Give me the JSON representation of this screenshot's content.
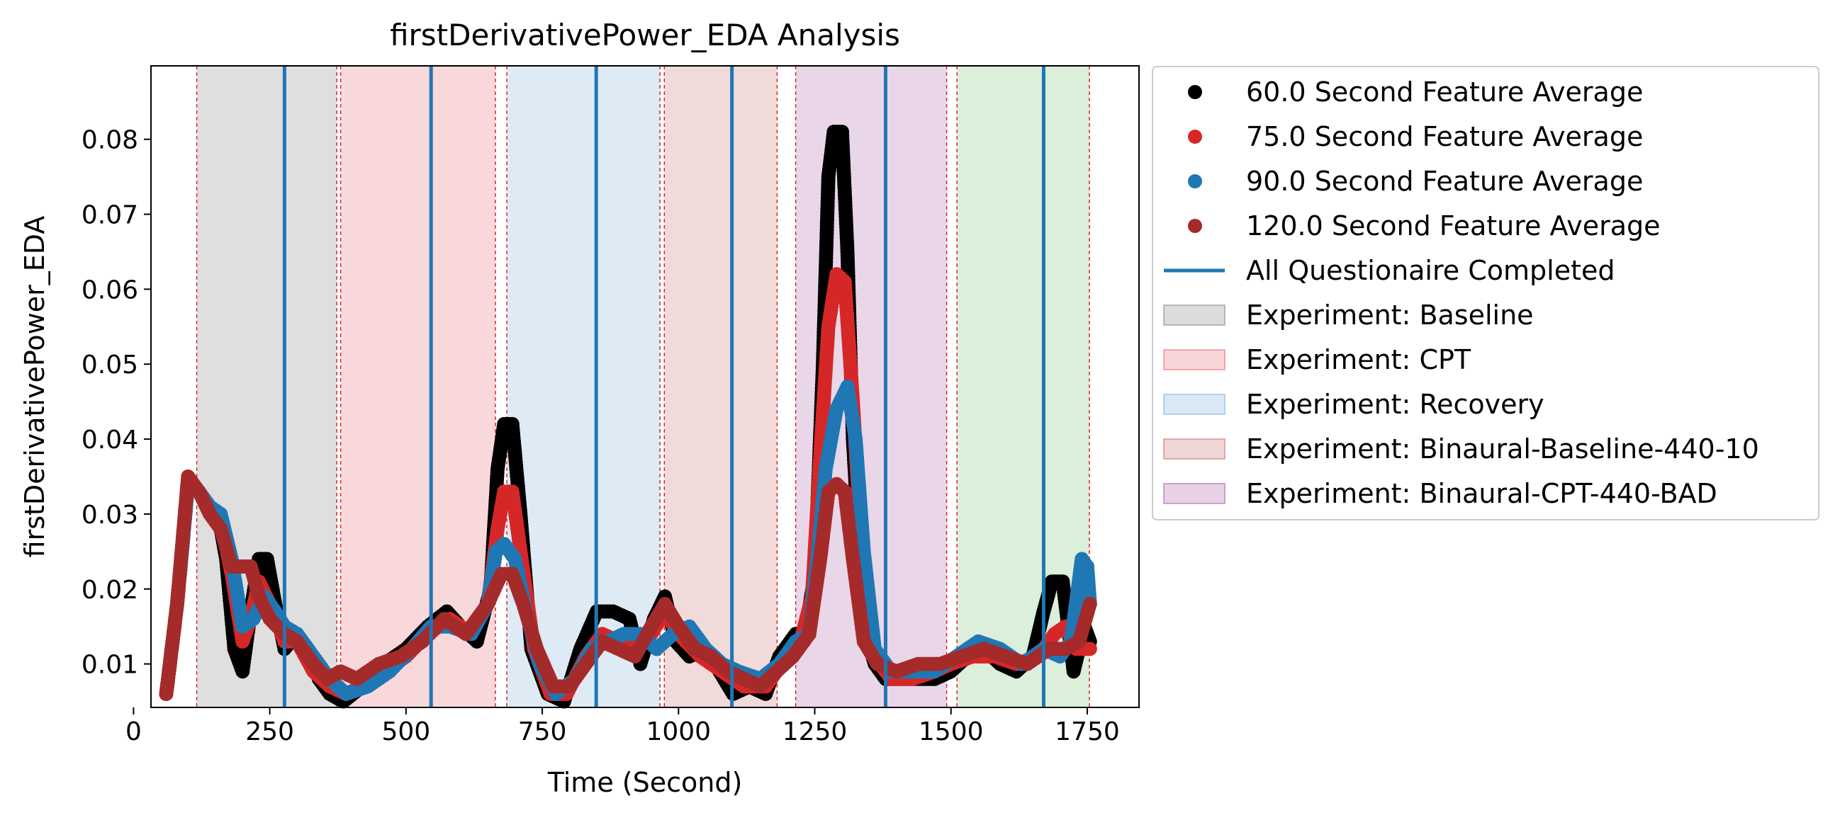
{
  "chart_data": {
    "type": "scatter",
    "title": "firstDerivativePower_EDA Analysis",
    "xlabel": "Time (Second)",
    "ylabel": "firstDerivativePower_EDA",
    "xlim": [
      32,
      1845
    ],
    "ylim": [
      0.0042,
      0.0898
    ],
    "xticks": [
      0,
      250,
      500,
      750,
      1000,
      1250,
      1500,
      1750
    ],
    "yticks": [
      0.01,
      0.02,
      0.03,
      0.04,
      0.05,
      0.06,
      0.07,
      0.08
    ],
    "xtick_labels": [
      "0",
      "250",
      "500",
      "750",
      "1000",
      "1250",
      "1500",
      "1750"
    ],
    "ytick_labels": [
      "0.01",
      "0.02",
      "0.03",
      "0.04",
      "0.05",
      "0.06",
      "0.07",
      "0.08"
    ],
    "grid": false,
    "legend_position": "outside right, top",
    "regions": [
      {
        "label": "Experiment: Baseline",
        "start": 116,
        "end": 373,
        "color": "#808080"
      },
      {
        "label": "Experiment: CPT",
        "start": 380,
        "end": 664,
        "color": "#e8636e"
      },
      {
        "label": "Experiment: Recovery",
        "start": 685,
        "end": 966,
        "color": "#7aaed6"
      },
      {
        "label": "Experiment: Binaural-Baseline-440-10",
        "start": 974,
        "end": 1181,
        "color": "#c56a6a"
      },
      {
        "label": "Experiment: Binaural-CPT-440-BAD",
        "start": 1215,
        "end": 1492,
        "color": "#a65aa8"
      },
      {
        "label": "",
        "start": 1511,
        "end": 1754,
        "color": "#6fbf6f"
      }
    ],
    "dashed_markers": [
      116,
      373,
      380,
      664,
      685,
      966,
      974,
      1181,
      1215,
      1492,
      1511,
      1754
    ],
    "questionnaire_label": "All Questionaire Completed",
    "questionnaire_times": [
      277,
      546,
      849,
      1098,
      1380,
      1670
    ],
    "series": [
      {
        "name": "60.0 Second Feature Average",
        "color": "#000000",
        "points": [
          [
            60,
            0.006
          ],
          [
            80,
            0.018
          ],
          [
            100,
            0.034
          ],
          [
            120,
            0.033
          ],
          [
            140,
            0.031
          ],
          [
            155,
            0.03
          ],
          [
            170,
            0.024
          ],
          [
            185,
            0.012
          ],
          [
            200,
            0.009
          ],
          [
            215,
            0.017
          ],
          [
            230,
            0.024
          ],
          [
            245,
            0.024
          ],
          [
            260,
            0.018
          ],
          [
            277,
            0.012
          ],
          [
            300,
            0.014
          ],
          [
            320,
            0.012
          ],
          [
            340,
            0.008
          ],
          [
            360,
            0.006
          ],
          [
            385,
            0.005
          ],
          [
            420,
            0.007
          ],
          [
            460,
            0.01
          ],
          [
            500,
            0.012
          ],
          [
            540,
            0.015
          ],
          [
            575,
            0.017
          ],
          [
            600,
            0.015
          ],
          [
            630,
            0.013
          ],
          [
            655,
            0.02
          ],
          [
            668,
            0.036
          ],
          [
            680,
            0.042
          ],
          [
            695,
            0.042
          ],
          [
            710,
            0.03
          ],
          [
            730,
            0.012
          ],
          [
            760,
            0.006
          ],
          [
            790,
            0.005
          ],
          [
            820,
            0.012
          ],
          [
            850,
            0.017
          ],
          [
            880,
            0.017
          ],
          [
            910,
            0.016
          ],
          [
            930,
            0.01
          ],
          [
            955,
            0.016
          ],
          [
            975,
            0.019
          ],
          [
            995,
            0.013
          ],
          [
            1020,
            0.011
          ],
          [
            1050,
            0.012
          ],
          [
            1075,
            0.009
          ],
          [
            1100,
            0.006
          ],
          [
            1130,
            0.007
          ],
          [
            1160,
            0.006
          ],
          [
            1185,
            0.011
          ],
          [
            1215,
            0.014
          ],
          [
            1230,
            0.013
          ],
          [
            1250,
            0.022
          ],
          [
            1265,
            0.05
          ],
          [
            1275,
            0.075
          ],
          [
            1285,
            0.081
          ],
          [
            1300,
            0.081
          ],
          [
            1310,
            0.065
          ],
          [
            1320,
            0.04
          ],
          [
            1340,
            0.015
          ],
          [
            1360,
            0.01
          ],
          [
            1380,
            0.008
          ],
          [
            1410,
            0.008
          ],
          [
            1440,
            0.008
          ],
          [
            1470,
            0.008
          ],
          [
            1500,
            0.009
          ],
          [
            1530,
            0.011
          ],
          [
            1560,
            0.012
          ],
          [
            1590,
            0.01
          ],
          [
            1620,
            0.009
          ],
          [
            1650,
            0.011
          ],
          [
            1670,
            0.017
          ],
          [
            1685,
            0.021
          ],
          [
            1705,
            0.021
          ],
          [
            1725,
            0.009
          ],
          [
            1745,
            0.015
          ],
          [
            1755,
            0.013
          ]
        ]
      },
      {
        "name": "75.0 Second Feature Average",
        "color": "#d62728",
        "points": [
          [
            60,
            0.006
          ],
          [
            80,
            0.018
          ],
          [
            100,
            0.034
          ],
          [
            120,
            0.033
          ],
          [
            140,
            0.031
          ],
          [
            160,
            0.029
          ],
          [
            180,
            0.022
          ],
          [
            200,
            0.013
          ],
          [
            215,
            0.016
          ],
          [
            230,
            0.021
          ],
          [
            250,
            0.018
          ],
          [
            277,
            0.013
          ],
          [
            300,
            0.013
          ],
          [
            330,
            0.009
          ],
          [
            360,
            0.007
          ],
          [
            390,
            0.006
          ],
          [
            420,
            0.007
          ],
          [
            460,
            0.009
          ],
          [
            500,
            0.011
          ],
          [
            540,
            0.014
          ],
          [
            580,
            0.016
          ],
          [
            620,
            0.014
          ],
          [
            650,
            0.018
          ],
          [
            668,
            0.028
          ],
          [
            680,
            0.033
          ],
          [
            695,
            0.033
          ],
          [
            712,
            0.024
          ],
          [
            735,
            0.012
          ],
          [
            765,
            0.006
          ],
          [
            795,
            0.006
          ],
          [
            830,
            0.011
          ],
          [
            860,
            0.014
          ],
          [
            890,
            0.013
          ],
          [
            920,
            0.012
          ],
          [
            950,
            0.014
          ],
          [
            975,
            0.017
          ],
          [
            1000,
            0.014
          ],
          [
            1040,
            0.011
          ],
          [
            1080,
            0.009
          ],
          [
            1120,
            0.007
          ],
          [
            1160,
            0.007
          ],
          [
            1190,
            0.01
          ],
          [
            1220,
            0.012
          ],
          [
            1245,
            0.019
          ],
          [
            1262,
            0.04
          ],
          [
            1275,
            0.055
          ],
          [
            1290,
            0.062
          ],
          [
            1305,
            0.061
          ],
          [
            1320,
            0.045
          ],
          [
            1340,
            0.02
          ],
          [
            1360,
            0.011
          ],
          [
            1390,
            0.008
          ],
          [
            1430,
            0.008
          ],
          [
            1470,
            0.009
          ],
          [
            1500,
            0.01
          ],
          [
            1540,
            0.011
          ],
          [
            1580,
            0.011
          ],
          [
            1620,
            0.01
          ],
          [
            1660,
            0.011
          ],
          [
            1690,
            0.014
          ],
          [
            1710,
            0.015
          ],
          [
            1730,
            0.012
          ],
          [
            1755,
            0.012
          ]
        ]
      },
      {
        "name": "90.0 Second Feature Average",
        "color": "#1f77b4",
        "points": [
          [
            60,
            0.006
          ],
          [
            80,
            0.018
          ],
          [
            100,
            0.034
          ],
          [
            120,
            0.033
          ],
          [
            140,
            0.031
          ],
          [
            160,
            0.03
          ],
          [
            180,
            0.024
          ],
          [
            200,
            0.015
          ],
          [
            220,
            0.016
          ],
          [
            240,
            0.019
          ],
          [
            260,
            0.017
          ],
          [
            277,
            0.015
          ],
          [
            300,
            0.014
          ],
          [
            330,
            0.011
          ],
          [
            360,
            0.008
          ],
          [
            390,
            0.006
          ],
          [
            430,
            0.007
          ],
          [
            470,
            0.009
          ],
          [
            510,
            0.012
          ],
          [
            546,
            0.015
          ],
          [
            580,
            0.015
          ],
          [
            620,
            0.014
          ],
          [
            650,
            0.018
          ],
          [
            665,
            0.025
          ],
          [
            680,
            0.026
          ],
          [
            700,
            0.024
          ],
          [
            720,
            0.017
          ],
          [
            745,
            0.01
          ],
          [
            775,
            0.006
          ],
          [
            810,
            0.008
          ],
          [
            840,
            0.012
          ],
          [
            870,
            0.013
          ],
          [
            900,
            0.014
          ],
          [
            930,
            0.014
          ],
          [
            960,
            0.012
          ],
          [
            990,
            0.014
          ],
          [
            1020,
            0.015
          ],
          [
            1050,
            0.012
          ],
          [
            1080,
            0.01
          ],
          [
            1110,
            0.009
          ],
          [
            1150,
            0.008
          ],
          [
            1185,
            0.01
          ],
          [
            1215,
            0.013
          ],
          [
            1240,
            0.014
          ],
          [
            1255,
            0.024
          ],
          [
            1270,
            0.036
          ],
          [
            1290,
            0.044
          ],
          [
            1310,
            0.047
          ],
          [
            1325,
            0.04
          ],
          [
            1340,
            0.025
          ],
          [
            1360,
            0.012
          ],
          [
            1390,
            0.009
          ],
          [
            1430,
            0.009
          ],
          [
            1470,
            0.009
          ],
          [
            1510,
            0.011
          ],
          [
            1550,
            0.013
          ],
          [
            1590,
            0.012
          ],
          [
            1630,
            0.01
          ],
          [
            1670,
            0.012
          ],
          [
            1700,
            0.011
          ],
          [
            1720,
            0.013
          ],
          [
            1740,
            0.024
          ],
          [
            1750,
            0.023
          ],
          [
            1755,
            0.018
          ]
        ]
      },
      {
        "name": "120.0 Second Feature Average",
        "color": "#a52a2a",
        "points": [
          [
            60,
            0.006
          ],
          [
            80,
            0.018
          ],
          [
            100,
            0.035
          ],
          [
            120,
            0.033
          ],
          [
            140,
            0.03
          ],
          [
            160,
            0.028
          ],
          [
            180,
            0.023
          ],
          [
            200,
            0.023
          ],
          [
            215,
            0.023
          ],
          [
            230,
            0.019
          ],
          [
            250,
            0.016
          ],
          [
            277,
            0.014
          ],
          [
            300,
            0.013
          ],
          [
            330,
            0.01
          ],
          [
            355,
            0.008
          ],
          [
            380,
            0.009
          ],
          [
            410,
            0.008
          ],
          [
            450,
            0.01
          ],
          [
            490,
            0.011
          ],
          [
            530,
            0.013
          ],
          [
            570,
            0.016
          ],
          [
            610,
            0.014
          ],
          [
            650,
            0.018
          ],
          [
            675,
            0.022
          ],
          [
            695,
            0.022
          ],
          [
            715,
            0.018
          ],
          [
            740,
            0.012
          ],
          [
            770,
            0.007
          ],
          [
            800,
            0.007
          ],
          [
            830,
            0.01
          ],
          [
            860,
            0.013
          ],
          [
            890,
            0.012
          ],
          [
            920,
            0.011
          ],
          [
            950,
            0.015
          ],
          [
            975,
            0.018
          ],
          [
            1000,
            0.015
          ],
          [
            1030,
            0.012
          ],
          [
            1060,
            0.011
          ],
          [
            1090,
            0.009
          ],
          [
            1120,
            0.008
          ],
          [
            1150,
            0.007
          ],
          [
            1180,
            0.009
          ],
          [
            1210,
            0.011
          ],
          [
            1240,
            0.014
          ],
          [
            1260,
            0.024
          ],
          [
            1275,
            0.033
          ],
          [
            1290,
            0.034
          ],
          [
            1305,
            0.033
          ],
          [
            1320,
            0.024
          ],
          [
            1340,
            0.013
          ],
          [
            1365,
            0.01
          ],
          [
            1400,
            0.009
          ],
          [
            1440,
            0.01
          ],
          [
            1480,
            0.01
          ],
          [
            1520,
            0.011
          ],
          [
            1560,
            0.012
          ],
          [
            1600,
            0.011
          ],
          [
            1640,
            0.01
          ],
          [
            1680,
            0.012
          ],
          [
            1710,
            0.012
          ],
          [
            1735,
            0.013
          ],
          [
            1755,
            0.018
          ]
        ]
      }
    ]
  }
}
